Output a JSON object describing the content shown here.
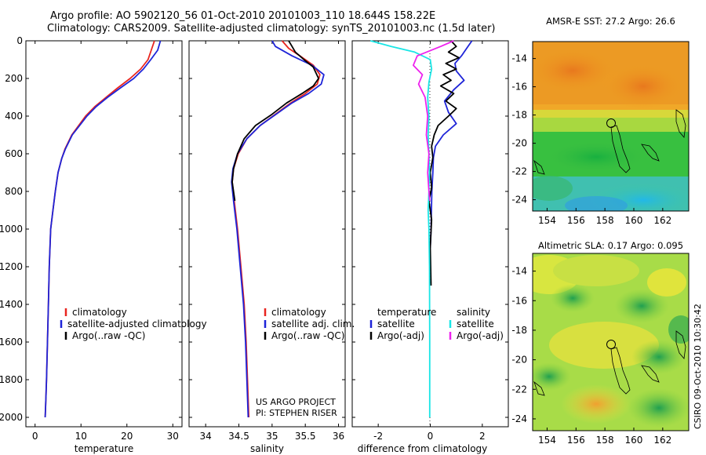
{
  "titles": {
    "line1": "Argo profile: AO 5902120_56 01-Oct-2010 20101003_110 18.644S 158.22E",
    "line2": "Climatology: CARS2009. Satellite-adjusted climatology: synTS_20101003.nc (1.5d later)"
  },
  "credit": {
    "line1": "US ARGO PROJECT",
    "line2": "PI: STEPHEN RISER"
  },
  "side_label": "CSIRO 09-Oct-2010 10:30:42",
  "colors": {
    "climatology": "#e8251f",
    "satellite": "#1e24d8",
    "argo": "#000000",
    "sal_satellite": "#19e6e6",
    "sal_argo": "#ee22ee"
  },
  "chart_data": [
    {
      "id": "temperature",
      "type": "line",
      "title": "",
      "xlabel": "temperature",
      "ylabel": "",
      "xlim": [
        -2,
        32
      ],
      "ylim": [
        0,
        2050
      ],
      "y_reversed": true,
      "xticks": [
        0,
        10,
        20,
        30
      ],
      "xticklabels": [
        "0",
        "10",
        "20",
        "30"
      ],
      "yticks": [
        0,
        200,
        400,
        600,
        800,
        1000,
        1200,
        1400,
        1600,
        1800,
        2000
      ],
      "yticklabels": [
        "0",
        "200",
        "400",
        "600",
        "800",
        "1000",
        "1200",
        "1400",
        "1600",
        "1800",
        "2000"
      ],
      "legend": [
        "climatology",
        "satellite-adjusted climatology",
        "Argo(..raw -QC)"
      ],
      "series": [
        {
          "name": "climatology",
          "color_key": "climatology",
          "x": [
            26.0,
            25.3,
            24.6,
            23.0,
            20.7,
            18.0,
            15.5,
            13.0,
            11.0,
            9.5,
            8.0,
            6.5,
            5.8,
            5.0,
            4.4,
            3.9,
            3.4,
            3.1,
            2.9,
            2.7,
            2.5,
            2.35,
            2.2
          ],
          "y": [
            0,
            50,
            100,
            150,
            200,
            250,
            300,
            350,
            400,
            450,
            500,
            575,
            625,
            700,
            800,
            900,
            1000,
            1200,
            1400,
            1600,
            1800,
            1900,
            2000
          ]
        },
        {
          "name": "satellite-adjusted climatology",
          "color_key": "satellite",
          "x": [
            27.3,
            26.7,
            25.2,
            23.6,
            21.5,
            18.6,
            15.8,
            13.3,
            11.3,
            9.7,
            8.1,
            6.6,
            5.8,
            5.0,
            4.4,
            3.9,
            3.4,
            3.1,
            2.9,
            2.7,
            2.5,
            2.35,
            2.2
          ],
          "y": [
            0,
            50,
            100,
            150,
            200,
            250,
            300,
            350,
            400,
            450,
            500,
            575,
            625,
            700,
            800,
            900,
            1000,
            1200,
            1400,
            1600,
            1800,
            1900,
            2000
          ]
        }
      ]
    },
    {
      "id": "salinity",
      "type": "line",
      "title": "",
      "xlabel": "salinity",
      "ylabel": "",
      "xlim": [
        33.75,
        36.1
      ],
      "ylim": [
        0,
        2050
      ],
      "y_reversed": true,
      "xticks": [
        34,
        34.5,
        35,
        35.5,
        36
      ],
      "xticklabels": [
        "34",
        "34.5",
        "35",
        "35.5",
        "36"
      ],
      "legend": [
        "climatology",
        "satellite adj. clim.",
        "Argo(..raw -QC)"
      ],
      "series": [
        {
          "name": "climatology",
          "color_key": "climatology",
          "x": [
            35.15,
            35.25,
            35.42,
            35.62,
            35.72,
            35.68,
            35.5,
            35.28,
            35.05,
            34.82,
            34.62,
            34.49,
            34.42,
            34.4,
            34.43,
            34.48,
            34.53,
            34.58,
            34.61,
            34.63,
            34.65
          ],
          "y": [
            0,
            40,
            80,
            130,
            180,
            230,
            280,
            330,
            390,
            450,
            520,
            600,
            680,
            750,
            850,
            1000,
            1200,
            1400,
            1600,
            1800,
            2000
          ]
        },
        {
          "name": "satellite adj. clim.",
          "color_key": "satellite",
          "x": [
            35.0,
            35.05,
            35.3,
            35.6,
            35.78,
            35.74,
            35.55,
            35.3,
            35.06,
            34.82,
            34.62,
            34.48,
            34.41,
            34.39,
            34.42,
            34.47,
            34.52,
            34.57,
            34.6,
            34.62,
            34.64
          ],
          "y": [
            0,
            30,
            80,
            130,
            180,
            230,
            280,
            330,
            390,
            450,
            520,
            600,
            680,
            750,
            850,
            1000,
            1200,
            1400,
            1600,
            1800,
            2000
          ]
        },
        {
          "name": "Argo(..raw -QC)",
          "color_key": "argo",
          "x": [
            35.25,
            35.3,
            35.35,
            35.48,
            35.62,
            35.66,
            35.7,
            35.62,
            35.45,
            35.22,
            35.0,
            34.75,
            34.58,
            34.48,
            34.42,
            34.4,
            34.44
          ],
          "y": [
            0,
            30,
            60,
            100,
            140,
            170,
            200,
            240,
            280,
            330,
            390,
            450,
            520,
            600,
            680,
            750,
            850
          ]
        }
      ]
    },
    {
      "id": "difference",
      "type": "line",
      "title": "",
      "xlabel": "difference from climatology",
      "ylabel": "",
      "xlim": [
        -3,
        3
      ],
      "ylim": [
        0,
        2050
      ],
      "y_reversed": true,
      "xticks": [
        -2,
        0,
        2
      ],
      "xticklabels": [
        "-2",
        "0",
        "2"
      ],
      "legend_titles": [
        "temperature",
        "salinity"
      ],
      "legend": [
        "satellite",
        "Argo(-adj)",
        "satellite",
        "Argo(-adj)"
      ],
      "series": [
        {
          "name": "temperature satellite",
          "color_key": "satellite",
          "x": [
            1.6,
            1.4,
            1.2,
            0.95,
            1.0,
            1.3,
            0.9,
            0.55,
            0.7,
            1.0,
            0.5,
            0.2,
            0.12,
            0.1,
            0.06,
            0.03,
            0.0
          ],
          "y": [
            0,
            40,
            80,
            120,
            160,
            210,
            260,
            320,
            380,
            440,
            500,
            560,
            620,
            700,
            800,
            1000,
            1100
          ]
        },
        {
          "name": "temperature Argo(-adj)",
          "color_key": "argo",
          "x": [
            0.8,
            1.0,
            0.7,
            1.1,
            0.6,
            1.0,
            0.5,
            0.8,
            0.4,
            0.9,
            0.6,
            1.0,
            0.7,
            0.3,
            0.15,
            0.05,
            0.1,
            0.0,
            0.05,
            -0.05,
            0.05,
            0.0,
            0.03
          ],
          "y": [
            0,
            30,
            60,
            90,
            120,
            150,
            180,
            210,
            240,
            280,
            320,
            360,
            400,
            450,
            500,
            560,
            620,
            700,
            780,
            850,
            950,
            1100,
            1300
          ]
        },
        {
          "name": "salinity satellite",
          "color_key": "sal_satellite",
          "x": [
            -2.3,
            -1.5,
            -0.6,
            0.0,
            0.05,
            -0.05,
            -0.1,
            -0.05,
            -0.08,
            -0.05,
            -0.03,
            -0.05,
            -0.08,
            -0.05,
            -0.03,
            -0.02,
            -0.02
          ],
          "y": [
            0,
            30,
            60,
            100,
            150,
            220,
            300,
            400,
            500,
            600,
            700,
            800,
            900,
            1000,
            1200,
            1600,
            2000
          ]
        },
        {
          "name": "salinity Argo(-adj)",
          "color_key": "sal_argo",
          "x": [
            0.9,
            0.4,
            -0.5,
            -0.65,
            -0.3,
            -0.45,
            -0.2,
            -0.1,
            -0.15,
            -0.05,
            -0.1,
            -0.05,
            -0.02
          ],
          "y": [
            0,
            30,
            80,
            130,
            180,
            230,
            300,
            400,
            500,
            600,
            700,
            800,
            850
          ]
        }
      ]
    },
    {
      "id": "sst_map",
      "type": "heatmap",
      "title": "AMSR-E SST: 27.2 Argo: 26.6",
      "xlim": [
        153,
        163.8
      ],
      "ylim": [
        -24.8,
        -12.8
      ],
      "xticks": [
        154,
        156,
        158,
        160,
        162
      ],
      "xticklabels": [
        "154",
        "156",
        "158",
        "160",
        "162"
      ],
      "yticks": [
        -14,
        -16,
        -18,
        -20,
        -22,
        -24
      ],
      "yticklabels": [
        "-14",
        "-16",
        "-18",
        "-20",
        "-22",
        "-24"
      ],
      "marker": {
        "lon": 158.22,
        "lat": -18.644
      }
    },
    {
      "id": "sla_map",
      "type": "heatmap",
      "title": "Altimetric SLA: 0.17 Argo: 0.095",
      "xlim": [
        153,
        163.8
      ],
      "ylim": [
        -24.8,
        -12.8
      ],
      "xticks": [
        154,
        156,
        158,
        160,
        162
      ],
      "xticklabels": [
        "154",
        "156",
        "158",
        "160",
        "162"
      ],
      "yticks": [
        -14,
        -16,
        -18,
        -20,
        -22,
        -24
      ],
      "yticklabels": [
        "-14",
        "-16",
        "-18",
        "-20",
        "-22",
        "-24"
      ],
      "marker": {
        "lon": 158.22,
        "lat": -18.644
      }
    }
  ]
}
